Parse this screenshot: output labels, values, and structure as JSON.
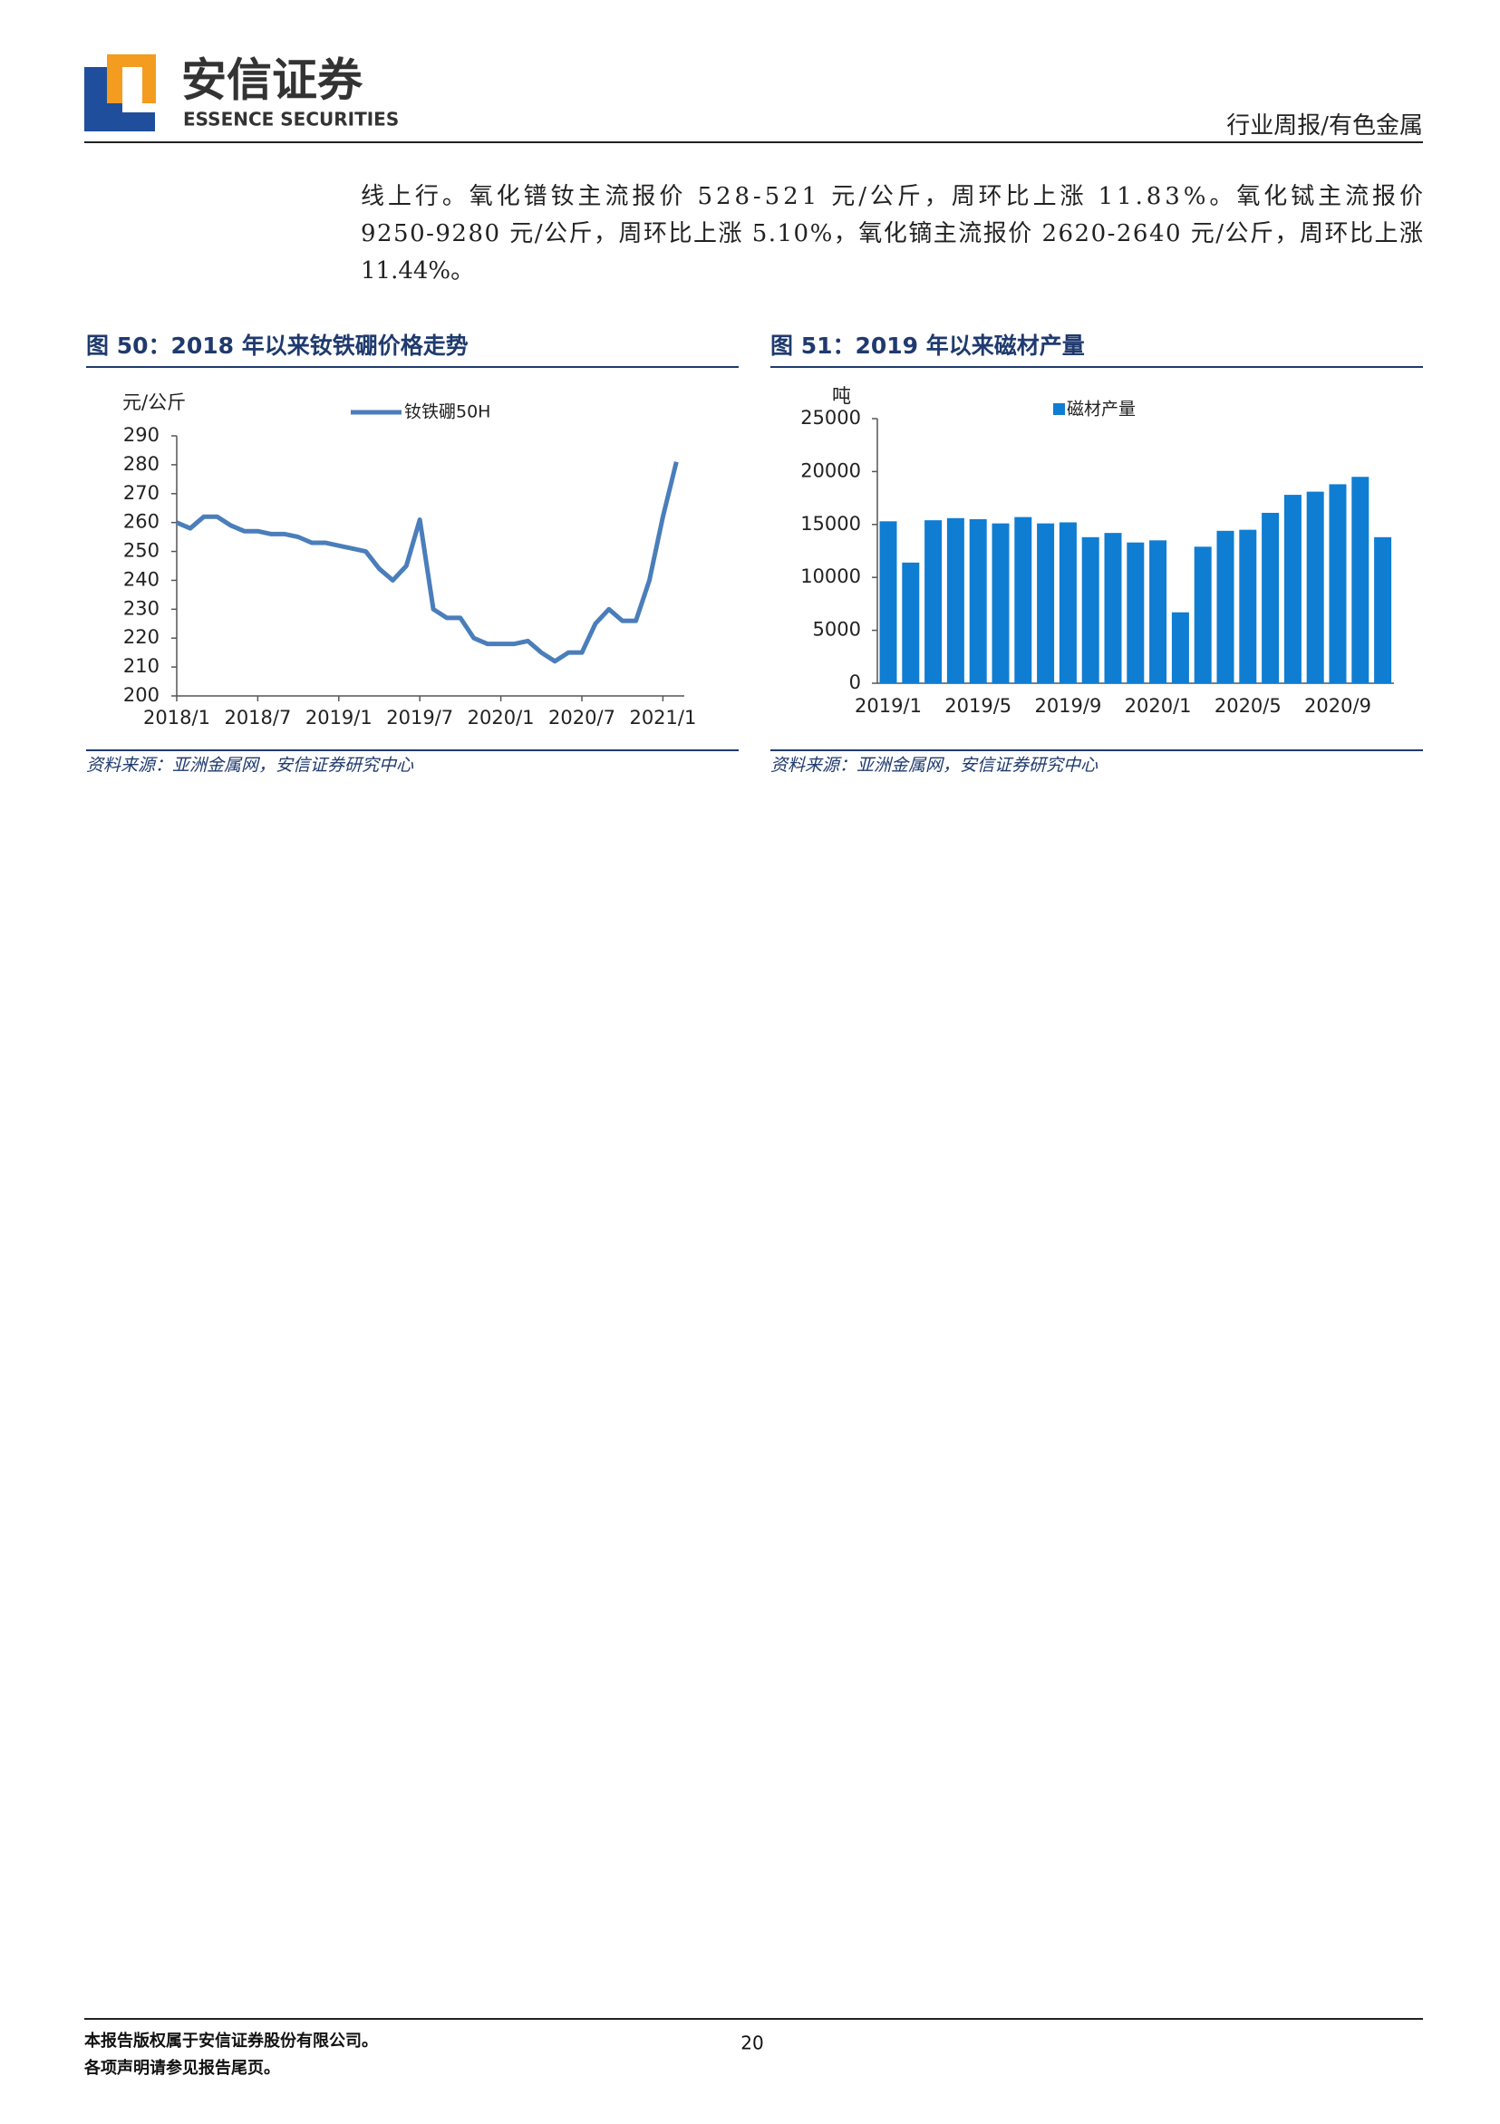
{
  "header": {
    "logo_cn": "安信证券",
    "logo_en": "ESSENCE SECURITIES",
    "section": "行业周报/有色金属"
  },
  "body": {
    "lines": [
      "线上行。氧化镨钕主流报价 528-521 元/公斤，周环比上涨 11.83%。氧化铽主流报价",
      "9250-9280 元/公斤，周环比上涨 5.10%，氧化镝主流报价 2620-2640 元/公斤，周环比上涨",
      "11.44%。"
    ]
  },
  "chart_data": [
    {
      "type": "line",
      "title": "图 50：2018 年以来钕铁硼价格走势",
      "y_label": "元/公斤",
      "categories": [
        "2018/1",
        null,
        null,
        null,
        null,
        null,
        "2018/7",
        null,
        null,
        null,
        null,
        null,
        "2019/1",
        null,
        null,
        null,
        null,
        null,
        "2019/7",
        null,
        null,
        null,
        null,
        null,
        "2020/1",
        null,
        null,
        null,
        null,
        null,
        "2020/7",
        null,
        null,
        null,
        null,
        null,
        "2021/1",
        null
      ],
      "series": [
        {
          "name": "钕铁硼50H",
          "color": "#4a7ebb",
          "values": [
            260,
            258,
            262,
            262,
            259,
            257,
            257,
            256,
            256,
            255,
            253,
            253,
            252,
            251,
            250,
            244,
            240,
            245,
            261,
            230,
            227,
            227,
            220,
            218,
            218,
            218,
            219,
            215,
            212,
            215,
            215,
            225,
            230,
            226,
            226,
            240,
            262,
            281
          ]
        }
      ],
      "ylim": [
        200,
        290
      ],
      "yticks": [
        200,
        210,
        220,
        230,
        240,
        250,
        260,
        270,
        280,
        290
      ],
      "source": "资料来源：亚洲金属网，安信证券研究中心"
    },
    {
      "type": "bar",
      "title": "图 51：2019 年以来磁材产量",
      "y_label": "吨",
      "categories": [
        "2019/1",
        null,
        null,
        null,
        "2019/5",
        null,
        null,
        null,
        "2019/9",
        null,
        null,
        null,
        "2020/1",
        null,
        null,
        null,
        "2020/5",
        null,
        null,
        null,
        "2020/9",
        null,
        null
      ],
      "series": [
        {
          "name": "磁材产量",
          "color": "#0f7dd2",
          "values": [
            15300,
            11400,
            15400,
            15600,
            15500,
            15100,
            15700,
            15100,
            15200,
            13800,
            14200,
            13300,
            13500,
            6700,
            12900,
            14400,
            14500,
            16100,
            17800,
            18100,
            18800,
            19500,
            13800
          ]
        }
      ],
      "ylim": [
        0,
        25000
      ],
      "yticks": [
        0,
        5000,
        10000,
        15000,
        20000,
        25000
      ],
      "source": "资料来源：亚洲金属网，安信证券研究中心"
    }
  ],
  "footer": {
    "lines": [
      "本报告版权属于安信证券股份有限公司。",
      "各项声明请参见报告尾页。"
    ],
    "page": "20"
  }
}
